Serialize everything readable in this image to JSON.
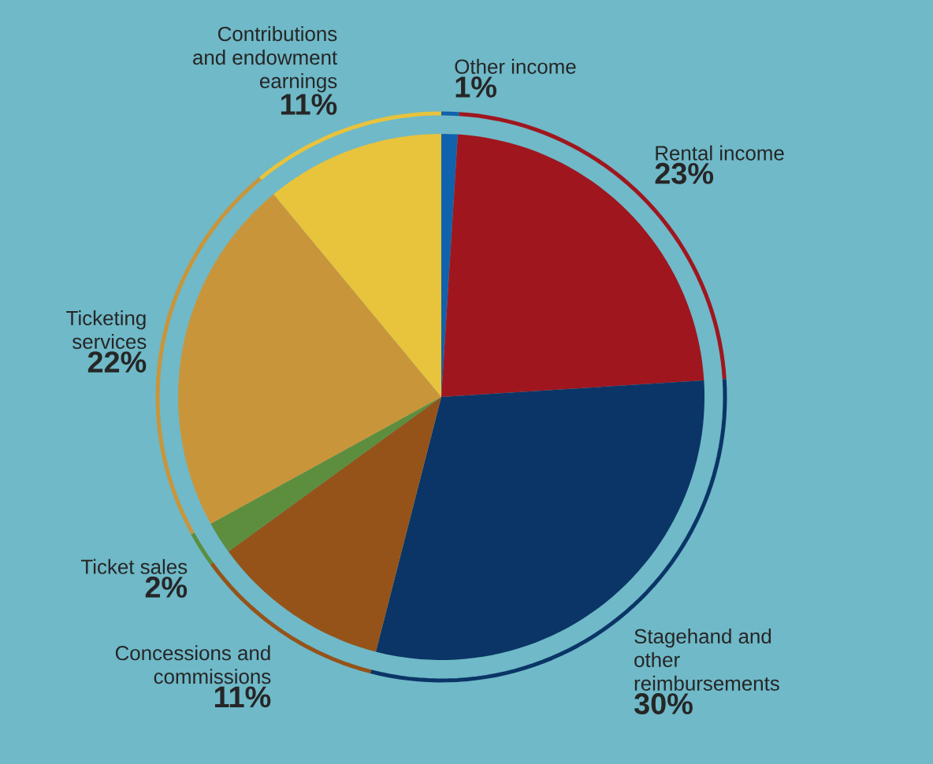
{
  "chart_data": {
    "type": "pie",
    "categories": [
      "Other income",
      "Rental income",
      "Stagehand and other reimbursements",
      "Concessions and commissions",
      "Ticket sales",
      "Ticketing services",
      "Contributions and endowment earnings"
    ],
    "values": [
      1,
      23,
      30,
      11,
      2,
      22,
      11
    ],
    "value_labels": [
      "1%",
      "23%",
      "30%",
      "11%",
      "2%",
      "22%",
      "11%"
    ],
    "colors": [
      "#1062ac",
      "#a0161e",
      "#0b3566",
      "#955319",
      "#5c8e3e",
      "#c9953a",
      "#e8c33c"
    ]
  }
}
